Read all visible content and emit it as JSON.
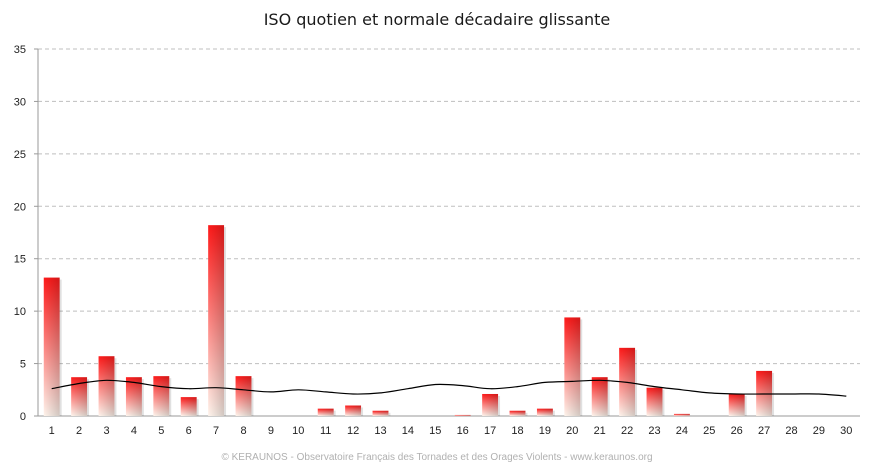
{
  "chart_data": {
    "type": "bar",
    "title": "ISO quotien et normale décadaire glissante",
    "categories": [
      "1",
      "2",
      "3",
      "4",
      "5",
      "6",
      "7",
      "8",
      "9",
      "10",
      "11",
      "12",
      "13",
      "14",
      "15",
      "16",
      "17",
      "18",
      "19",
      "20",
      "21",
      "22",
      "23",
      "24",
      "25",
      "26",
      "27",
      "28",
      "29",
      "30"
    ],
    "series": [
      {
        "values": [
          13.2,
          3.7,
          5.7,
          3.7,
          3.8,
          1.8,
          18.2,
          3.8,
          0,
          0,
          0.7,
          1.0,
          0.5,
          0,
          0,
          0.1,
          2.1,
          0.5,
          0.7,
          9.4,
          3.7,
          6.5,
          2.7,
          0.2,
          0,
          2.1,
          4.3,
          0,
          0,
          0
        ]
      },
      {
        "type": "line",
        "values": [
          2.6,
          3.1,
          3.4,
          3.2,
          2.8,
          2.6,
          2.7,
          2.5,
          2.3,
          2.5,
          2.3,
          2.1,
          2.2,
          2.6,
          3.0,
          2.9,
          2.6,
          2.8,
          3.2,
          3.3,
          3.4,
          3.2,
          2.8,
          2.5,
          2.2,
          2.1,
          2.1,
          2.1,
          2.1,
          1.9
        ]
      }
    ],
    "ylim": [
      0,
      35
    ],
    "yticks": [
      0,
      5,
      10,
      15,
      20,
      25,
      30,
      35
    ],
    "grid": true,
    "colors": {
      "bar_top": "#ff1a1a",
      "bar_bottom": "#fff4ec",
      "line": "#000000",
      "grid": "#bfbfbf"
    }
  },
  "footer": "© KERAUNOS - Observatoire Français des Tornades et des Orages Violents - www.keraunos.org"
}
